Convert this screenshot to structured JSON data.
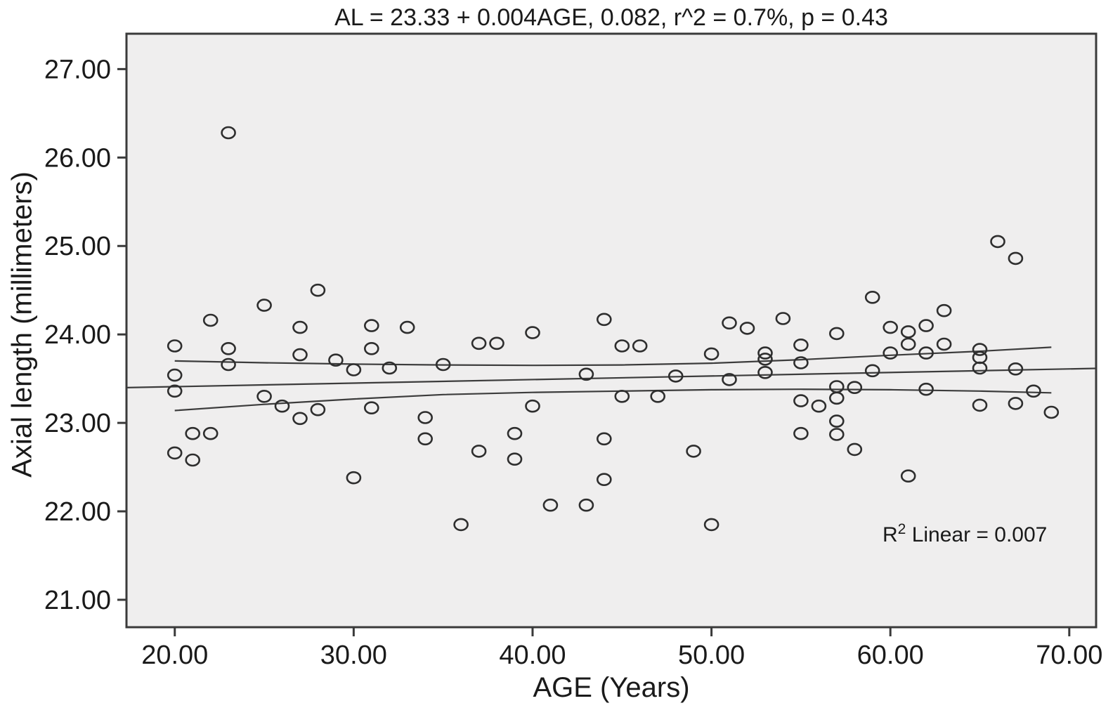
{
  "chart_data": {
    "type": "scatter",
    "title": "AL = 23.33 + 0.004AGE, 0.082, r^2 = 0.7%, p = 0.43",
    "xlabel": "AGE (Years)",
    "ylabel": "Axial length (millimeters)",
    "annotation": "R^2 Linear = 0.007",
    "annotation_parts": {
      "base": "R",
      "sup": "2",
      "rest": " Linear = 0.007"
    },
    "xlim": [
      17.3,
      71.5
    ],
    "ylim": [
      20.69,
      27.4
    ],
    "grid": false,
    "legend": "none",
    "x_ticks": {
      "values": [
        20,
        30,
        40,
        50,
        60,
        70
      ],
      "labels": [
        "20.00",
        "30.00",
        "40.00",
        "50.00",
        "60.00",
        "70.00"
      ]
    },
    "y_ticks": {
      "values": [
        21,
        22,
        23,
        24,
        25,
        26,
        27
      ],
      "labels": [
        "21.00",
        "22.00",
        "23.00",
        "24.00",
        "25.00",
        "26.00",
        "27.00"
      ]
    },
    "points": [
      [
        20,
        23.87
      ],
      [
        20,
        23.54
      ],
      [
        20,
        23.36
      ],
      [
        20,
        22.66
      ],
      [
        21,
        22.88
      ],
      [
        21,
        22.58
      ],
      [
        22,
        24.16
      ],
      [
        22,
        22.88
      ],
      [
        23,
        26.28
      ],
      [
        23,
        23.84
      ],
      [
        23,
        23.66
      ],
      [
        25,
        24.33
      ],
      [
        25,
        23.3
      ],
      [
        26,
        23.19
      ],
      [
        27,
        24.08
      ],
      [
        27,
        23.77
      ],
      [
        27,
        23.05
      ],
      [
        28,
        24.5
      ],
      [
        28,
        23.15
      ],
      [
        29,
        23.71
      ],
      [
        30,
        23.6
      ],
      [
        30,
        22.38
      ],
      [
        31,
        24.1
      ],
      [
        31,
        23.84
      ],
      [
        31,
        23.17
      ],
      [
        32,
        23.62
      ],
      [
        33,
        24.08
      ],
      [
        34,
        23.06
      ],
      [
        34,
        22.82
      ],
      [
        35,
        23.66
      ],
      [
        36,
        21.85
      ],
      [
        37,
        23.9
      ],
      [
        37,
        22.68
      ],
      [
        38,
        23.9
      ],
      [
        39,
        22.88
      ],
      [
        39,
        22.59
      ],
      [
        40,
        24.02
      ],
      [
        40,
        23.19
      ],
      [
        41,
        22.07
      ],
      [
        43,
        23.55
      ],
      [
        43,
        22.07
      ],
      [
        44,
        24.17
      ],
      [
        44,
        22.82
      ],
      [
        44,
        22.36
      ],
      [
        45,
        23.87
      ],
      [
        45,
        23.3
      ],
      [
        46,
        23.87
      ],
      [
        47,
        23.3
      ],
      [
        48,
        23.53
      ],
      [
        49,
        22.68
      ],
      [
        50,
        23.78
      ],
      [
        50,
        21.85
      ],
      [
        51,
        24.13
      ],
      [
        51,
        23.49
      ],
      [
        52,
        24.07
      ],
      [
        53,
        23.79
      ],
      [
        53,
        23.72
      ],
      [
        53,
        23.57
      ],
      [
        54,
        24.18
      ],
      [
        55,
        23.88
      ],
      [
        55,
        23.68
      ],
      [
        55,
        23.25
      ],
      [
        55,
        22.88
      ],
      [
        56,
        23.19
      ],
      [
        57,
        24.01
      ],
      [
        57,
        23.41
      ],
      [
        57,
        23.28
      ],
      [
        57,
        23.02
      ],
      [
        57,
        22.87
      ],
      [
        58,
        23.4
      ],
      [
        58,
        22.7
      ],
      [
        59,
        24.42
      ],
      [
        59,
        23.59
      ],
      [
        60,
        24.08
      ],
      [
        60,
        23.79
      ],
      [
        61,
        24.03
      ],
      [
        61,
        23.89
      ],
      [
        61,
        22.4
      ],
      [
        62,
        24.1
      ],
      [
        62,
        23.79
      ],
      [
        62,
        23.38
      ],
      [
        63,
        24.27
      ],
      [
        63,
        23.89
      ],
      [
        65,
        23.83
      ],
      [
        65,
        23.74
      ],
      [
        65,
        23.62
      ],
      [
        65,
        23.2
      ],
      [
        66,
        25.05
      ],
      [
        67,
        24.86
      ],
      [
        67,
        23.61
      ],
      [
        67,
        23.22
      ],
      [
        68,
        23.36
      ],
      [
        69,
        23.12
      ]
    ],
    "regression_line": {
      "x": [
        17.3,
        71.5
      ],
      "y": [
        23.399,
        23.616
      ]
    },
    "ci_upper": {
      "x": [
        20,
        25,
        30,
        35,
        40,
        45,
        50,
        55,
        60,
        65,
        69
      ],
      "y": [
        23.7,
        23.68,
        23.665,
        23.655,
        23.65,
        23.655,
        23.675,
        23.715,
        23.765,
        23.81,
        23.855
      ]
    },
    "ci_lower": {
      "x": [
        20,
        25,
        30,
        35,
        40,
        45,
        50,
        55,
        60,
        65,
        69
      ],
      "y": [
        23.14,
        23.21,
        23.27,
        23.32,
        23.345,
        23.36,
        23.375,
        23.38,
        23.375,
        23.36,
        23.34
      ]
    },
    "colors": {
      "page_background": "#ffffff",
      "plot_background": "#efeeee",
      "border": "#3a3a3a",
      "marker": "#2e2e2e",
      "line": "#3c3c3c",
      "text": "#1a1a1a"
    }
  }
}
